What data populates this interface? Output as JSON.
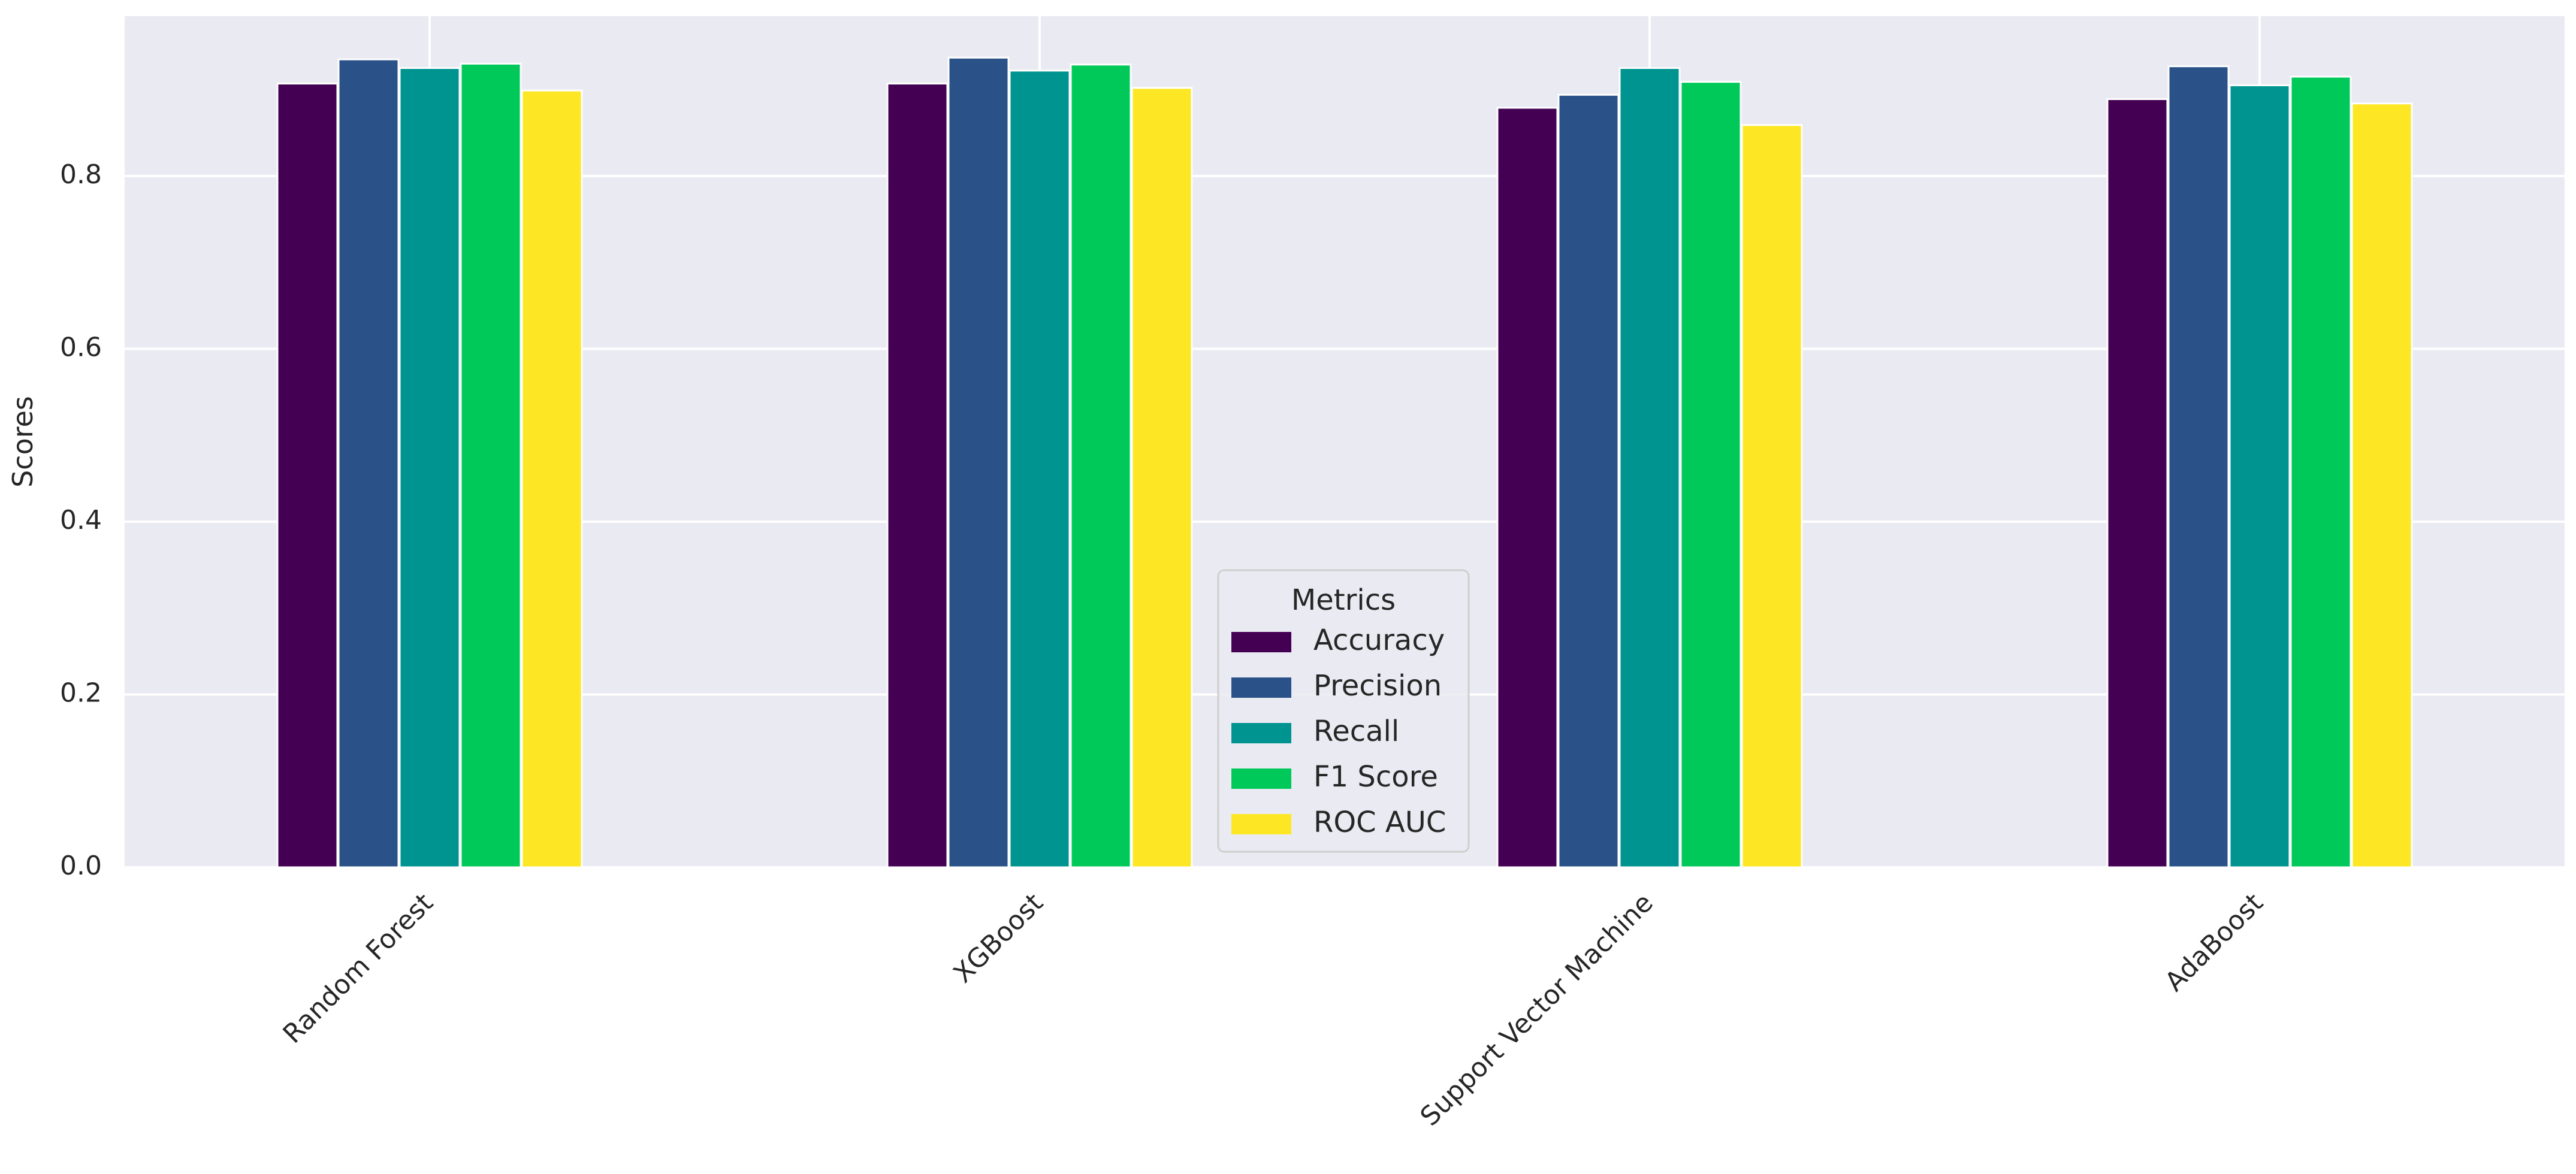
{
  "chart_data": {
    "type": "bar",
    "title": "",
    "xlabel": "",
    "ylabel": "Scores",
    "ylim": [
      0,
      0.985
    ],
    "yticks": [
      "0.0",
      "0.2",
      "0.4",
      "0.6",
      "0.8"
    ],
    "grid": true,
    "categories": [
      "Random Forest",
      "XGBoost",
      "Support Vector Machine",
      "AdaBoost"
    ],
    "series": [
      {
        "name": "Accuracy",
        "color": "#440154",
        "values": [
          0.907,
          0.907,
          0.879,
          0.889
        ]
      },
      {
        "name": "Precision",
        "color": "#2a5288",
        "values": [
          0.935,
          0.937,
          0.894,
          0.927
        ]
      },
      {
        "name": "Recall",
        "color": "#009490",
        "values": [
          0.925,
          0.922,
          0.925,
          0.905
        ]
      },
      {
        "name": "F1 Score",
        "color": "#00c95a",
        "values": [
          0.93,
          0.929,
          0.909,
          0.915
        ]
      },
      {
        "name": "ROC AUC",
        "color": "#fde725",
        "values": [
          0.899,
          0.902,
          0.859,
          0.884
        ]
      }
    ],
    "legend": {
      "title": "Metrics",
      "placement": "lower-center"
    }
  }
}
